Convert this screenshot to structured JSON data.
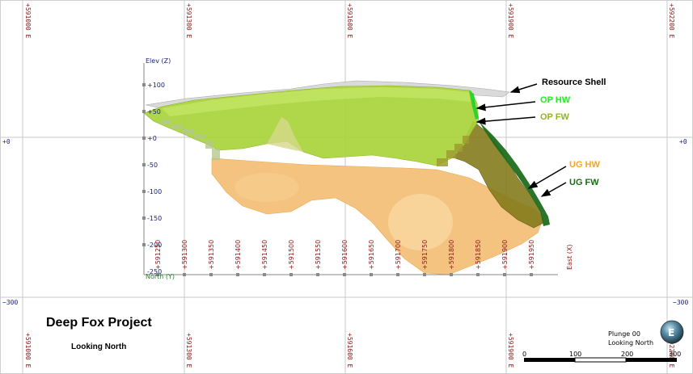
{
  "grid": {
    "east_labels": [
      "+591000 E",
      "+591300 E",
      "+591600 E",
      "+591900 E",
      "+592200 E"
    ],
    "elev_labels": [
      "+0",
      "+0",
      "−300",
      "−300"
    ]
  },
  "axes": {
    "elev_title": "Elev (Z)",
    "elev_ticks": [
      "+100",
      "+50",
      "+0",
      "-50",
      "-100",
      "-150",
      "-200",
      "-250"
    ],
    "north_title": "North (Y)",
    "east_title": "East (X)",
    "north_ticks": [
      "+591250",
      "+591300",
      "+591350",
      "+591400",
      "+591450",
      "+591500",
      "+591550",
      "+591600",
      "+591650",
      "+591700",
      "+591750",
      "+591800",
      "+591850",
      "+591900",
      "+591950"
    ]
  },
  "annotations": {
    "resource_shell": "Resource Shell",
    "op_hw": "OP HW",
    "op_fw": "OP FW",
    "ug_hw": "UG HW",
    "ug_fw": "UG FW"
  },
  "colors": {
    "resource_shell": "#b8b8b8",
    "op_hw": "#22ee22",
    "op_fw": "#8fb81e",
    "ug_hw": "#f5a623",
    "ug_fw": "#1a6b1a",
    "op_solid": "#a8d830",
    "ug_solid": "#f4c07a",
    "ug_fw_solid": "#7a7a18"
  },
  "title": {
    "project": "Deep Fox Project",
    "view": "Looking North"
  },
  "orientation": {
    "plunge": "Plunge 00",
    "looking": "Looking North"
  },
  "scale_bar": {
    "labels": [
      "0",
      "100",
      "200",
      "300"
    ]
  },
  "compass_icon": "compass-ball-icon"
}
